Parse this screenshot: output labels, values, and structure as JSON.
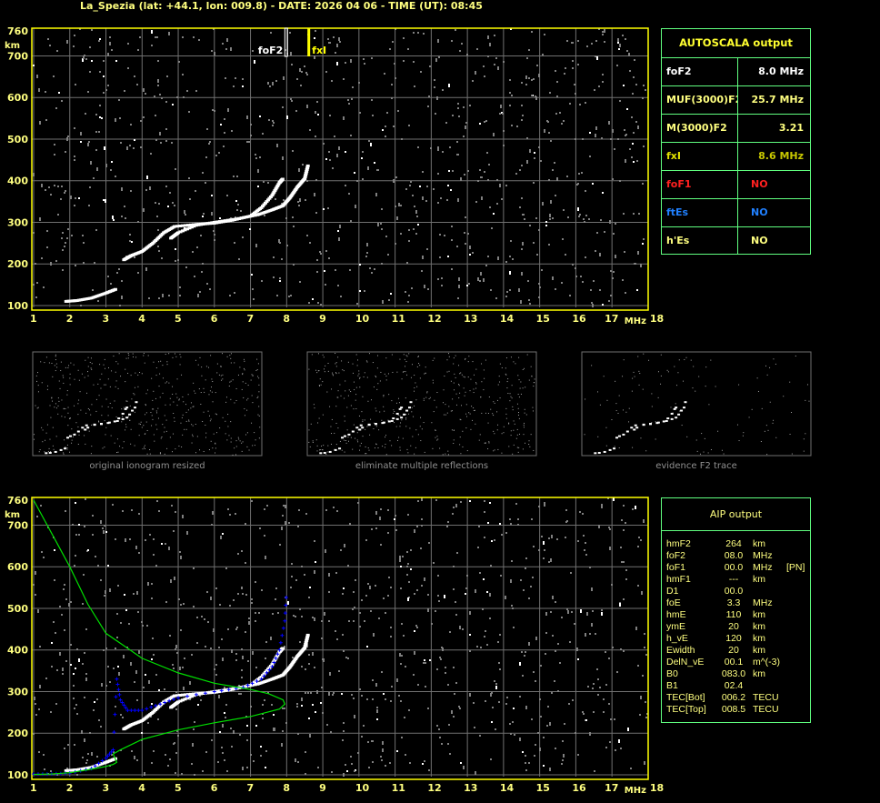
{
  "title": "La_Spezia (lat: +44.1, lon: 009.8) - DATE: 2026 04 06 - TIME (UT): 08:45",
  "autoscala": {
    "header": "AUTOSCALA output",
    "rows": [
      {
        "key": "foF2",
        "value": "8.0 MHz",
        "key_color": "#ffffff",
        "value_color": "#ffffff"
      },
      {
        "key": "MUF(3000)F2",
        "value": "25.7 MHz",
        "key_color": "#ffff80",
        "value_color": "#ffff80"
      },
      {
        "key": "M(3000)F2",
        "value": "3.21",
        "key_color": "#ffff80",
        "value_color": "#ffff80"
      },
      {
        "key": "fxI",
        "value": "8.6 MHz",
        "key_color": "#e0e000",
        "value_color": "#c8c800"
      },
      {
        "key": "foF1",
        "value": "NO",
        "key_color": "#ff2020",
        "value_color": "#ff2020"
      },
      {
        "key": "ftEs",
        "value": "NO",
        "key_color": "#2080ff",
        "value_color": "#2080ff"
      },
      {
        "key": "h'Es",
        "value": "NO",
        "key_color": "#ffff80",
        "value_color": "#ffff80"
      }
    ]
  },
  "aip": {
    "header": "AIP output",
    "rows": [
      [
        "hmF2",
        "264",
        "km",
        ""
      ],
      [
        "foF2",
        "08.0",
        "MHz",
        ""
      ],
      [
        "foF1",
        "00.0",
        "MHz",
        "[PN]"
      ],
      [
        "hmF1",
        "---",
        "km",
        ""
      ],
      [
        "D1",
        "00.0",
        "",
        ""
      ],
      [
        "foE",
        "3.3",
        "MHz",
        ""
      ],
      [
        "hmE",
        "110",
        "km",
        ""
      ],
      [
        "ymE",
        "20",
        "km",
        ""
      ],
      [
        "h_vE",
        "120",
        "km",
        ""
      ],
      [
        "Ewidth",
        "20",
        "km",
        ""
      ],
      [
        "DelN_vE",
        "00.1",
        "m^(-3)",
        ""
      ],
      [
        "B0",
        "083.0",
        "km",
        ""
      ],
      [
        "B1",
        "02.4",
        "",
        ""
      ],
      [
        "TEC[Bot]",
        "006.2",
        "TECU",
        ""
      ],
      [
        "TEC[Top]",
        "008.5",
        "TECU",
        ""
      ]
    ]
  },
  "thumbnails": [
    "original ionogram resized",
    "eliminate multiple reflections",
    "evidence F2 trace"
  ],
  "chart_data": [
    {
      "type": "scatter",
      "xlabel": "MHz",
      "ylabel": "km",
      "xlim": [
        1,
        18
      ],
      "ylim": [
        100,
        760
      ],
      "xticks": [
        "1",
        "2",
        "3",
        "4",
        "5",
        "6",
        "7",
        "8",
        "9",
        "10",
        "11",
        "12",
        "13",
        "14",
        "15",
        "16",
        "17",
        "18"
      ],
      "yticks": [
        "100",
        "200",
        "300",
        "400",
        "500",
        "600",
        "700",
        "760"
      ],
      "grid": true,
      "markers": [
        {
          "label": "foF2",
          "x": 8.0,
          "color": "#ffffff"
        },
        {
          "label": "fxI",
          "x": 8.6,
          "color": "#ffff00"
        }
      ],
      "series": [
        {
          "color": "#ffffff",
          "points": [
            [
              1.9,
              110
            ],
            [
              2.2,
              112
            ],
            [
              2.6,
              118
            ],
            [
              3.0,
              130
            ],
            [
              3.3,
              140
            ],
            [
              3.5,
              210
            ],
            [
              3.7,
              220
            ],
            [
              4.0,
              230
            ],
            [
              4.3,
              250
            ],
            [
              4.6,
              275
            ],
            [
              4.9,
              290
            ],
            [
              5.5,
              295
            ],
            [
              6.0,
              298
            ],
            [
              6.5,
              305
            ],
            [
              7.0,
              315
            ],
            [
              7.3,
              335
            ],
            [
              7.6,
              365
            ],
            [
              7.8,
              395
            ],
            [
              7.9,
              405
            ]
          ]
        },
        {
          "color": "#ffffff",
          "points": [
            [
              4.8,
              262
            ],
            [
              5.0,
              275
            ],
            [
              5.5,
              293
            ],
            [
              6.0,
              300
            ],
            [
              6.6,
              308
            ],
            [
              7.2,
              318
            ],
            [
              7.6,
              330
            ],
            [
              7.9,
              340
            ],
            [
              8.1,
              360
            ],
            [
              8.3,
              385
            ],
            [
              8.5,
              405
            ],
            [
              8.6,
              440
            ]
          ]
        }
      ]
    },
    {
      "type": "line",
      "xlabel": "MHz",
      "ylabel": "km",
      "xlim": [
        1,
        18
      ],
      "ylim": [
        100,
        760
      ],
      "xticks": [
        "1",
        "2",
        "3",
        "4",
        "5",
        "6",
        "7",
        "8",
        "9",
        "10",
        "11",
        "12",
        "13",
        "14",
        "15",
        "16",
        "17",
        "18"
      ],
      "yticks": [
        "100",
        "200",
        "300",
        "400",
        "500",
        "600",
        "700",
        "760"
      ],
      "grid": true,
      "series": [
        {
          "color": "#ffffff",
          "style": "dots",
          "points": [
            [
              1.9,
              110
            ],
            [
              2.2,
              112
            ],
            [
              2.6,
              118
            ],
            [
              3.0,
              130
            ],
            [
              3.3,
              140
            ],
            [
              3.5,
              210
            ],
            [
              3.7,
              220
            ],
            [
              4.0,
              230
            ],
            [
              4.3,
              250
            ],
            [
              4.6,
              275
            ],
            [
              4.9,
              290
            ],
            [
              5.5,
              295
            ],
            [
              6.0,
              298
            ],
            [
              6.5,
              305
            ],
            [
              7.0,
              315
            ],
            [
              7.3,
              335
            ],
            [
              7.6,
              365
            ],
            [
              7.8,
              395
            ],
            [
              7.9,
              405
            ]
          ]
        },
        {
          "color": "#ffffff",
          "style": "dots",
          "points": [
            [
              4.8,
              262
            ],
            [
              5.0,
              275
            ],
            [
              5.5,
              293
            ],
            [
              6.0,
              300
            ],
            [
              6.6,
              308
            ],
            [
              7.2,
              318
            ],
            [
              7.6,
              330
            ],
            [
              7.9,
              340
            ],
            [
              8.1,
              360
            ],
            [
              8.3,
              385
            ],
            [
              8.5,
              405
            ],
            [
              8.6,
              440
            ]
          ]
        },
        {
          "color": "#0000ff",
          "style": "crosses",
          "points": [
            [
              1,
              102
            ],
            [
              1.5,
              102
            ],
            [
              2,
              104
            ],
            [
              2.6,
              115
            ],
            [
              3.0,
              140
            ],
            [
              3.2,
              160
            ],
            [
              3.3,
              330
            ],
            [
              3.4,
              280
            ],
            [
              3.6,
              255
            ],
            [
              4.0,
              255
            ],
            [
              4.5,
              270
            ],
            [
              5,
              285
            ],
            [
              6,
              300
            ],
            [
              6.8,
              310
            ],
            [
              7.3,
              330
            ],
            [
              7.6,
              360
            ],
            [
              7.8,
              400
            ],
            [
              7.95,
              470
            ],
            [
              8.0,
              545
            ]
          ]
        },
        {
          "color": "#00e000",
          "style": "line",
          "points": [
            [
              1,
              760
            ],
            [
              1.5,
              680
            ],
            [
              2,
              600
            ],
            [
              2.5,
              510
            ],
            [
              3,
              440
            ],
            [
              4,
              380
            ],
            [
              5,
              345
            ],
            [
              6,
              320
            ],
            [
              7,
              305
            ],
            [
              7.5,
              295
            ],
            [
              7.9,
              280
            ],
            [
              7.95,
              270
            ],
            [
              7.8,
              258
            ],
            [
              7,
              240
            ],
            [
              6,
              225
            ],
            [
              5,
              208
            ],
            [
              4,
              185
            ],
            [
              3.4,
              160
            ],
            [
              3.2,
              150
            ],
            [
              3.3,
              130
            ],
            [
              3.2,
              125
            ],
            [
              3,
              120
            ],
            [
              2.5,
              112
            ],
            [
              2,
              105
            ],
            [
              1.5,
              102
            ],
            [
              1,
              101
            ]
          ]
        }
      ]
    }
  ]
}
